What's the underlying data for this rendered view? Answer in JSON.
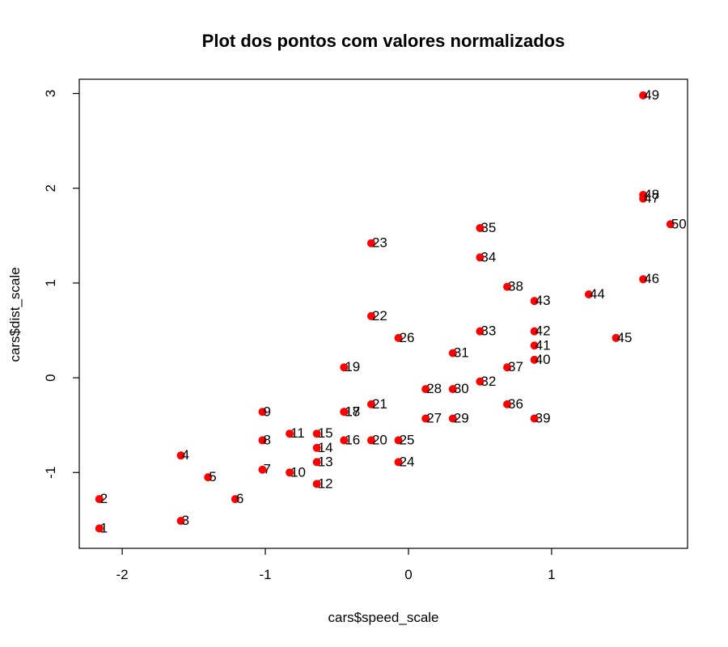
{
  "chart_data": {
    "type": "scatter",
    "title": "Plot dos pontos com valores normalizados",
    "xlabel": "cars$speed_scale",
    "ylabel": "cars$dist_scale",
    "xlim": [
      -2.3,
      1.95
    ],
    "ylim": [
      -1.8,
      3.15
    ],
    "xticks": [
      -2,
      -1,
      0,
      1
    ],
    "yticks": [
      -1,
      0,
      1,
      2,
      3
    ],
    "xtick_labels": [
      "-2",
      "-1",
      "0",
      "1"
    ],
    "ytick_labels": [
      "-1",
      "0",
      "1",
      "2",
      "3"
    ],
    "grid": false,
    "legend": "none",
    "point_color": "#ff0000",
    "series": [
      {
        "labels": [
          "1",
          "2",
          "3",
          "4",
          "5",
          "6",
          "7",
          "8",
          "9",
          "10",
          "11",
          "12",
          "13",
          "14",
          "15",
          "16",
          "17",
          "18",
          "19",
          "20",
          "21",
          "22",
          "23",
          "24",
          "25",
          "26",
          "27",
          "28",
          "29",
          "30",
          "31",
          "32",
          "33",
          "34",
          "35",
          "36",
          "37",
          "38",
          "39",
          "40",
          "41",
          "42",
          "43",
          "44",
          "45",
          "46",
          "47",
          "48",
          "49",
          "50"
        ],
        "x": [
          -2.16,
          -2.16,
          -1.59,
          -1.59,
          -1.4,
          -1.21,
          -1.02,
          -1.02,
          -1.02,
          -0.83,
          -0.83,
          -0.64,
          -0.64,
          -0.64,
          -0.64,
          -0.45,
          -0.45,
          -0.45,
          -0.45,
          -0.26,
          -0.26,
          -0.26,
          -0.26,
          -0.07,
          -0.07,
          -0.07,
          0.12,
          0.12,
          0.31,
          0.31,
          0.31,
          0.5,
          0.5,
          0.5,
          0.5,
          0.69,
          0.69,
          0.69,
          0.88,
          0.88,
          0.88,
          0.88,
          0.88,
          1.26,
          1.45,
          1.64,
          1.64,
          1.64,
          1.64,
          1.83
        ],
        "y": [
          -1.59,
          -1.28,
          -1.51,
          -0.82,
          -1.05,
          -1.28,
          -0.97,
          -0.66,
          -0.36,
          -1.0,
          -0.59,
          -1.12,
          -0.89,
          -0.74,
          -0.59,
          -0.66,
          -0.36,
          -0.36,
          0.11,
          -0.66,
          -0.28,
          0.65,
          1.42,
          -0.89,
          -0.66,
          0.42,
          -0.43,
          -0.12,
          -0.43,
          -0.12,
          0.26,
          -0.04,
          0.49,
          1.27,
          1.58,
          -0.28,
          0.11,
          0.96,
          -0.43,
          0.19,
          0.34,
          0.49,
          0.81,
          0.88,
          0.42,
          1.04,
          1.89,
          1.93,
          2.98,
          1.62
        ]
      }
    ]
  }
}
